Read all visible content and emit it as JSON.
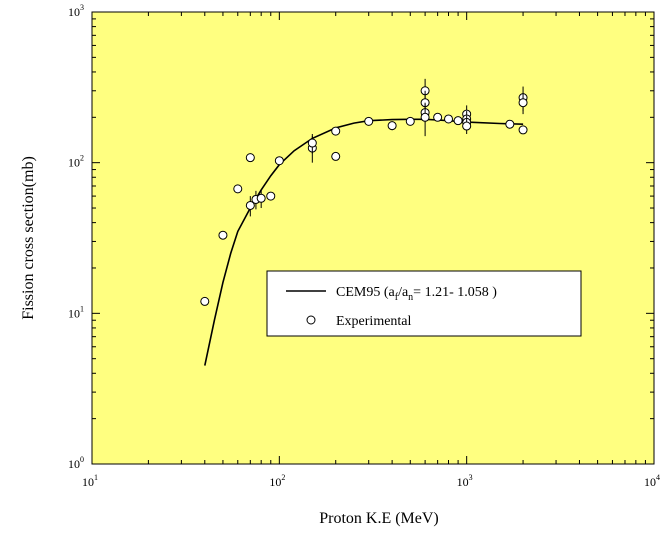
{
  "chart_data": {
    "type": "scatter",
    "title": "",
    "xlabel": "Proton K.E (MeV)",
    "ylabel": "Fission cross section(mb)",
    "x_scale": "log",
    "y_scale": "log",
    "xlim": [
      10,
      10000
    ],
    "ylim": [
      1,
      1000
    ],
    "x_ticks": [
      {
        "value": 10,
        "mantissa": "10",
        "exp": "1"
      },
      {
        "value": 100,
        "mantissa": "10",
        "exp": "2"
      },
      {
        "value": 1000,
        "mantissa": "10",
        "exp": "3"
      },
      {
        "value": 10000,
        "mantissa": "10",
        "exp": "4"
      }
    ],
    "y_ticks": [
      {
        "value": 1,
        "mantissa": "10",
        "exp": "0"
      },
      {
        "value": 10,
        "mantissa": "10",
        "exp": "1"
      },
      {
        "value": 100,
        "mantissa": "10",
        "exp": "2"
      },
      {
        "value": 1000,
        "mantissa": "10",
        "exp": "3"
      }
    ],
    "grid": false,
    "background_color": "#ffff80",
    "legend_position": "center-right",
    "legend": {
      "line_label": {
        "prefix": "CEM95 (a",
        "sub1": "f",
        "mid": "/a",
        "sub2": "n",
        "suffix": "= 1.21- 1.058 )"
      },
      "marker_label": "Experimental"
    },
    "series": [
      {
        "kind": "line",
        "color": "#000000",
        "x": [
          40,
          45,
          50,
          55,
          60,
          70,
          80,
          90,
          100,
          120,
          150,
          200,
          250,
          300,
          400,
          500,
          600,
          700,
          800,
          1000,
          1500,
          2000
        ],
        "y": [
          4.5,
          9.0,
          16,
          25,
          35,
          50,
          66,
          82,
          97,
          120,
          145,
          170,
          183,
          190,
          193,
          194,
          194,
          192,
          190,
          186,
          182,
          180
        ]
      },
      {
        "kind": "scatter",
        "marker": "open-circle",
        "x": [
          40,
          50,
          60,
          70,
          70,
          75,
          80,
          90,
          100,
          150,
          150,
          200,
          200,
          300,
          400,
          500,
          600,
          600,
          600,
          600,
          700,
          800,
          900,
          1000,
          1000,
          1000,
          1000,
          1700,
          2000,
          2000,
          2000
        ],
        "y": [
          12,
          33,
          67,
          108,
          52,
          57,
          58,
          60,
          103,
          125,
          135,
          110,
          162,
          188,
          176,
          188,
          300,
          250,
          215,
          200,
          200,
          195,
          190,
          210,
          195,
          185,
          175,
          180,
          270,
          250,
          165
        ],
        "err": [
          0,
          0,
          0,
          0,
          8,
          8,
          8,
          0,
          0,
          25,
          20,
          0,
          0,
          0,
          12,
          0,
          60,
          50,
          30,
          50,
          0,
          0,
          0,
          30,
          25,
          20,
          20,
          0,
          50,
          40,
          0
        ]
      }
    ]
  }
}
